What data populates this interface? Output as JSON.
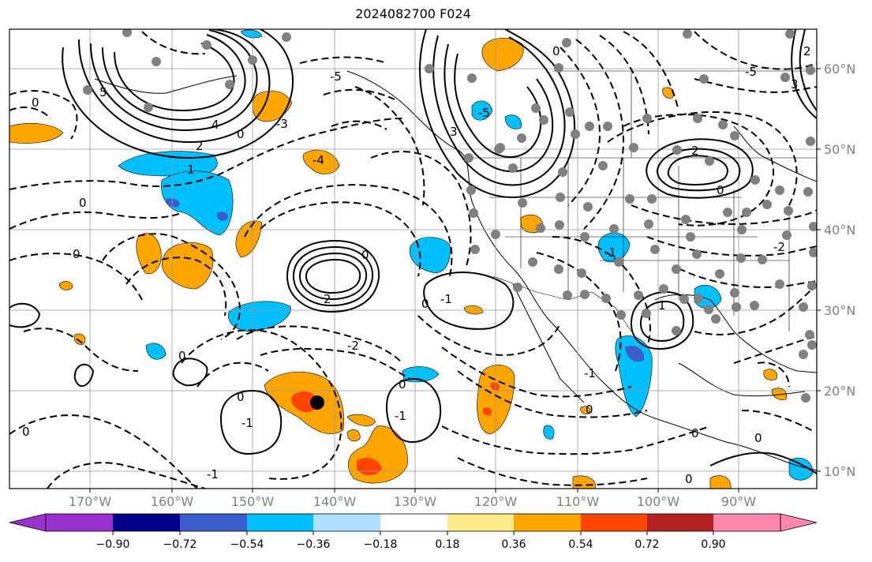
{
  "title": "2024082700 F024",
  "lat_labels": [
    "60°N",
    "50°N",
    "40°N",
    "30°N",
    "20°N",
    "10°N"
  ],
  "lon_labels": [
    "170°W",
    "160°W",
    "150°W",
    "140°W",
    "130°W",
    "120°W",
    "110°W",
    "100°W",
    "90°W"
  ],
  "colorbar": {
    "labels": [
      "−0.90",
      "−0.72",
      "−0.54",
      "−0.36",
      "−0.18",
      "0.18",
      "0.36",
      "0.54",
      "0.72",
      "0.90"
    ],
    "colors": [
      "#9932cc",
      "#00008b",
      "#3a5fcd",
      "#00bfff",
      "#b0e0ff",
      "#ffffff",
      "#ffeb8a",
      "#ffa500",
      "#ff4500",
      "#b22222",
      "#ff88aa"
    ]
  },
  "contour_labels": [
    "5",
    "4",
    "2",
    "1",
    "0",
    "-1",
    "-2",
    "-3",
    "-4",
    "-5",
    "3"
  ],
  "marker_colors": {
    "stations": "#808080",
    "storm_center": "#000000"
  }
}
